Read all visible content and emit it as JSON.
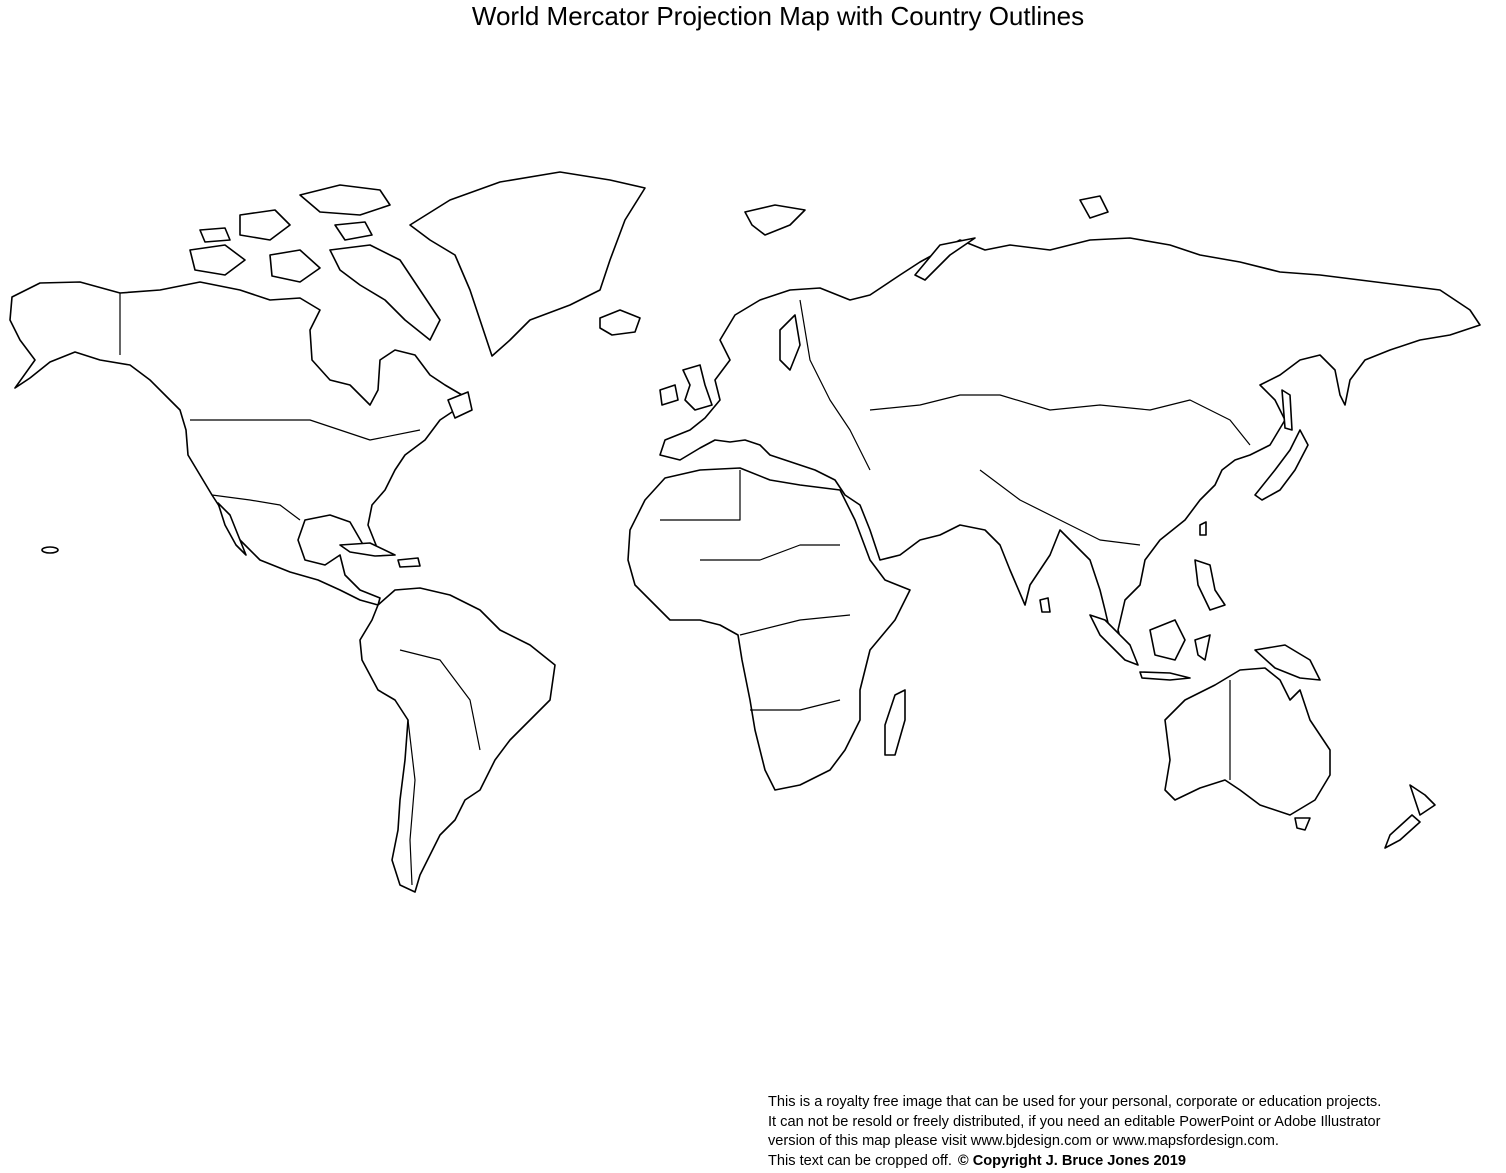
{
  "title": "World Mercator Projection Map with Country Outlines",
  "footer": {
    "line1": "This is a royalty free image that can be used for your personal, corporate or education projects.",
    "line2": "It can not be resold or freely distributed, if you need an editable PowerPoint or Adobe Illustrator",
    "line3": "version of this map please visit www.bjdesign.com or www.mapsfordesign.com.",
    "line4": "This text can be cropped off.",
    "copyright": "© Copyright J. Bruce Jones 2019"
  },
  "map": {
    "projection": "Mercator",
    "fill_color": "#ffffff",
    "outline_color": "#000000"
  }
}
